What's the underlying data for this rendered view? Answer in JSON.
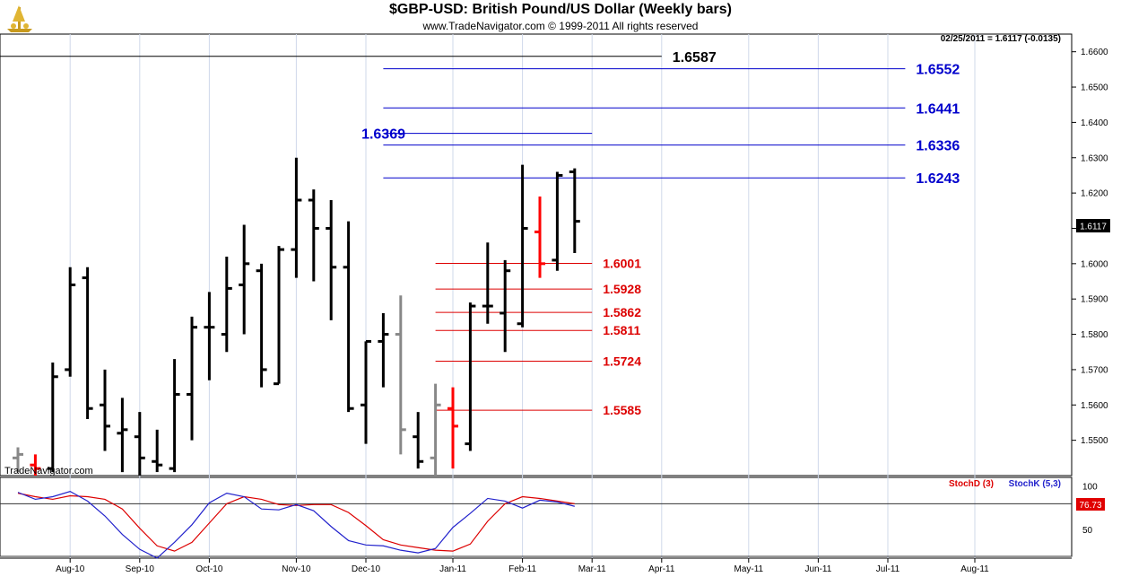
{
  "title": "$GBP-USD:  British Pound/US Dollar  (Weekly bars)",
  "subtitle": "www.TradeNavigator.com © 1999-2011 All rights reserved",
  "watermark": "TradeNavigator.com",
  "status_text": "02/25/2011 = 1.6117  (-0.0135)",
  "last_price_label": "1.6117",
  "colors": {
    "up_bar": "#000000",
    "down_bar": "#ff0000",
    "gray_bar": "#888888",
    "fib_blue": "#0000cc",
    "fib_red": "#dd0000",
    "stoch_d": "#dd0000",
    "stoch_k": "#2222cc"
  },
  "chart_data": [
    {
      "type": "ohlc",
      "title": "$GBP-USD:  British Pound/US Dollar  (Weekly bars)",
      "ylim": [
        1.54,
        1.665
      ],
      "y_ticks": [
        "1.5500",
        "1.5600",
        "1.5700",
        "1.5800",
        "1.5900",
        "1.6000",
        "1.6100",
        "1.6200",
        "1.6300",
        "1.6400",
        "1.6500",
        "1.6600"
      ],
      "x_ticks": [
        {
          "label": "Aug-10",
          "week": 4
        },
        {
          "label": "Sep-10",
          "week": 8
        },
        {
          "label": "Oct-10",
          "week": 12
        },
        {
          "label": "Nov-10",
          "week": 17
        },
        {
          "label": "Dec-10",
          "week": 21
        },
        {
          "label": "Jan-11",
          "week": 26
        },
        {
          "label": "Feb-11",
          "week": 30
        },
        {
          "label": "Mar-11",
          "week": 34
        },
        {
          "label": "Apr-11",
          "week": 38
        },
        {
          "label": "May-11",
          "week": 43
        },
        {
          "label": "Jun-11",
          "week": 47
        },
        {
          "label": "Jul-11",
          "week": 51
        },
        {
          "label": "Aug-11",
          "week": 56
        }
      ],
      "bars": [
        {
          "week": 1,
          "o": 1.545,
          "h": 1.548,
          "l": 1.541,
          "c": 1.546,
          "col": "gray"
        },
        {
          "week": 2,
          "o": 1.543,
          "h": 1.546,
          "l": 1.54,
          "c": 1.542,
          "col": "down"
        },
        {
          "week": 3,
          "o": 1.542,
          "h": 1.572,
          "l": 1.541,
          "c": 1.568,
          "col": "up"
        },
        {
          "week": 4,
          "o": 1.57,
          "h": 1.599,
          "l": 1.568,
          "c": 1.594,
          "col": "up"
        },
        {
          "week": 5,
          "o": 1.596,
          "h": 1.599,
          "l": 1.556,
          "c": 1.559,
          "col": "up"
        },
        {
          "week": 6,
          "o": 1.56,
          "h": 1.57,
          "l": 1.547,
          "c": 1.554,
          "col": "up"
        },
        {
          "week": 7,
          "o": 1.552,
          "h": 1.562,
          "l": 1.541,
          "c": 1.553,
          "col": "up"
        },
        {
          "week": 8,
          "o": 1.551,
          "h": 1.558,
          "l": 1.54,
          "c": 1.545,
          "col": "up"
        },
        {
          "week": 9,
          "o": 1.544,
          "h": 1.553,
          "l": 1.541,
          "c": 1.543,
          "col": "up"
        },
        {
          "week": 10,
          "o": 1.542,
          "h": 1.573,
          "l": 1.541,
          "c": 1.563,
          "col": "up"
        },
        {
          "week": 11,
          "o": 1.563,
          "h": 1.585,
          "l": 1.55,
          "c": 1.582,
          "col": "up"
        },
        {
          "week": 12,
          "o": 1.582,
          "h": 1.592,
          "l": 1.567,
          "c": 1.582,
          "col": "up"
        },
        {
          "week": 13,
          "o": 1.58,
          "h": 1.602,
          "l": 1.575,
          "c": 1.593,
          "col": "up"
        },
        {
          "week": 14,
          "o": 1.594,
          "h": 1.611,
          "l": 1.58,
          "c": 1.6,
          "col": "up"
        },
        {
          "week": 15,
          "o": 1.598,
          "h": 1.6,
          "l": 1.565,
          "c": 1.57,
          "col": "up"
        },
        {
          "week": 16,
          "o": 1.566,
          "h": 1.605,
          "l": 1.566,
          "c": 1.604,
          "col": "up"
        },
        {
          "week": 17,
          "o": 1.604,
          "h": 1.63,
          "l": 1.596,
          "c": 1.618,
          "col": "up"
        },
        {
          "week": 18,
          "o": 1.618,
          "h": 1.621,
          "l": 1.595,
          "c": 1.61,
          "col": "up"
        },
        {
          "week": 19,
          "o": 1.61,
          "h": 1.618,
          "l": 1.584,
          "c": 1.599,
          "col": "up"
        },
        {
          "week": 20,
          "o": 1.599,
          "h": 1.612,
          "l": 1.558,
          "c": 1.559,
          "col": "up"
        },
        {
          "week": 21,
          "o": 1.56,
          "h": 1.578,
          "l": 1.549,
          "c": 1.578,
          "col": "up"
        },
        {
          "week": 22,
          "o": 1.578,
          "h": 1.586,
          "l": 1.565,
          "c": 1.58,
          "col": "up"
        },
        {
          "week": 23,
          "o": 1.58,
          "h": 1.591,
          "l": 1.546,
          "c": 1.553,
          "col": "gray"
        },
        {
          "week": 24,
          "o": 1.551,
          "h": 1.558,
          "l": 1.542,
          "c": 1.544,
          "col": "up"
        },
        {
          "week": 25,
          "o": 1.545,
          "h": 1.566,
          "l": 1.54,
          "c": 1.56,
          "col": "gray"
        },
        {
          "week": 26,
          "o": 1.559,
          "h": 1.565,
          "l": 1.542,
          "c": 1.554,
          "col": "down"
        },
        {
          "week": 27,
          "o": 1.549,
          "h": 1.589,
          "l": 1.547,
          "c": 1.588,
          "col": "up"
        },
        {
          "week": 28,
          "o": 1.588,
          "h": 1.606,
          "l": 1.583,
          "c": 1.588,
          "col": "up"
        },
        {
          "week": 29,
          "o": 1.586,
          "h": 1.601,
          "l": 1.575,
          "c": 1.598,
          "col": "up"
        },
        {
          "week": 30,
          "o": 1.583,
          "h": 1.628,
          "l": 1.582,
          "c": 1.61,
          "col": "up"
        },
        {
          "week": 31,
          "o": 1.609,
          "h": 1.619,
          "l": 1.596,
          "c": 1.6,
          "col": "down"
        },
        {
          "week": 32,
          "o": 1.601,
          "h": 1.626,
          "l": 1.598,
          "c": 1.625,
          "col": "up"
        },
        {
          "week": 33,
          "o": 1.626,
          "h": 1.627,
          "l": 1.603,
          "c": 1.612,
          "col": "up"
        }
      ],
      "levels": [
        {
          "value": 1.6587,
          "label": "1.6587",
          "color": "black",
          "from_week": 0,
          "to_week": 38
        },
        {
          "value": 1.6552,
          "label": "1.6552",
          "color": "blue",
          "from_week": 22,
          "to_week": 52
        },
        {
          "value": 1.6441,
          "label": "1.6441",
          "color": "blue",
          "from_week": 22,
          "to_week": 52
        },
        {
          "value": 1.6369,
          "label": "1.6369",
          "color": "blue",
          "from_week": 22,
          "to_week": 34,
          "label_left": true
        },
        {
          "value": 1.6336,
          "label": "1.6336",
          "color": "blue",
          "from_week": 22,
          "to_week": 52
        },
        {
          "value": 1.6243,
          "label": "1.6243",
          "color": "blue",
          "from_week": 22,
          "to_week": 52
        },
        {
          "value": 1.6001,
          "label": "1.6001",
          "color": "red",
          "from_week": 25,
          "to_week": 34
        },
        {
          "value": 1.5928,
          "label": "1.5928",
          "color": "red",
          "from_week": 25,
          "to_week": 34
        },
        {
          "value": 1.5862,
          "label": "1.5862",
          "color": "red",
          "from_week": 25,
          "to_week": 34
        },
        {
          "value": 1.5811,
          "label": "1.5811",
          "color": "red",
          "from_week": 25,
          "to_week": 34
        },
        {
          "value": 1.5724,
          "label": "1.5724",
          "color": "red",
          "from_week": 25,
          "to_week": 34
        },
        {
          "value": 1.5585,
          "label": "1.5585",
          "color": "red",
          "from_week": 25,
          "to_week": 34
        }
      ]
    },
    {
      "type": "line",
      "ylim": [
        20,
        110
      ],
      "y_ticks": [
        "100",
        "50"
      ],
      "reference_lines": [
        80,
        20
      ],
      "last_value_label": "76.73",
      "series": [
        {
          "name": "StochD (3)",
          "color": "red",
          "values": [
            92,
            88,
            85,
            89,
            88,
            85,
            74,
            52,
            32,
            26,
            36,
            58,
            80,
            88,
            85,
            79,
            78,
            79,
            79,
            70,
            55,
            39,
            33,
            30,
            27,
            26,
            34,
            60,
            80,
            88,
            86,
            83,
            80
          ]
        },
        {
          "name": "StochK (5,3)",
          "color": "blue",
          "values": [
            93,
            85,
            88,
            94,
            83,
            66,
            45,
            28,
            18,
            36,
            56,
            81,
            92,
            88,
            74,
            73,
            79,
            72,
            54,
            38,
            33,
            32,
            27,
            24,
            29,
            53,
            69,
            86,
            83,
            75,
            84,
            82,
            77
          ]
        }
      ]
    }
  ]
}
